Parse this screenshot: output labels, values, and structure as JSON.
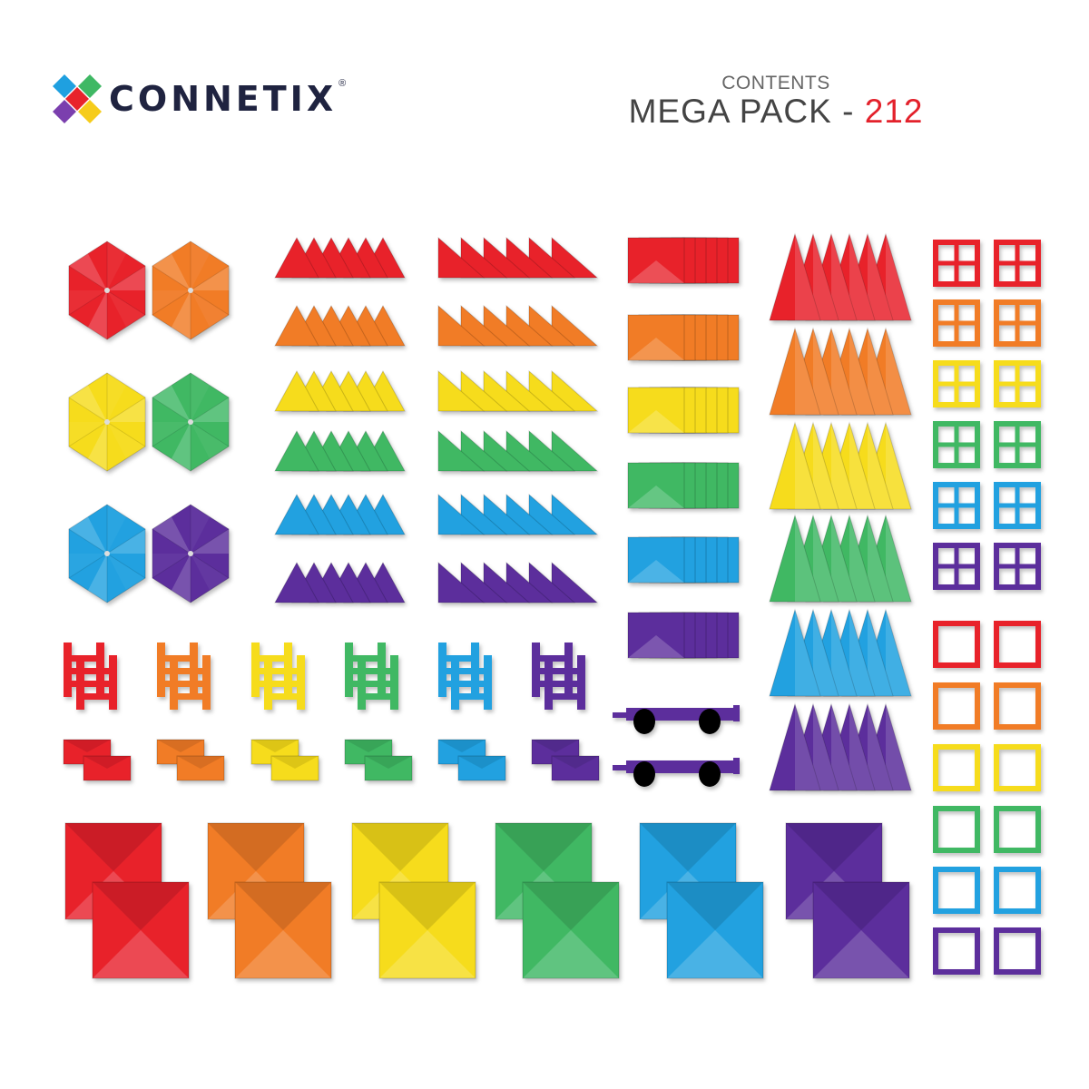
{
  "brand": {
    "name": "CONNETIX",
    "registered": "®"
  },
  "header": {
    "label": "CONTENTS",
    "pack_name": "MEGA PACK",
    "separator": " - ",
    "piece_count": "212"
  },
  "colors": {
    "red": "#e8232c",
    "orange": "#f17b25",
    "yellow": "#f6dc1b",
    "green": "#3fb864",
    "blue": "#20a1e0",
    "purple": "#5b2e9c",
    "wheel": "#000000",
    "title_accent": "#e3212b"
  },
  "piece_groups": [
    {
      "type": "hexagon",
      "per_color": 1
    },
    {
      "type": "small-equilateral-triangle",
      "per_color": 6
    },
    {
      "type": "right-triangle",
      "per_color": 6
    },
    {
      "type": "rectangle",
      "per_color": 6
    },
    {
      "type": "tall-isosceles-triangle",
      "per_color": 6
    },
    {
      "type": "window-square",
      "per_color": 2
    },
    {
      "type": "square-frame",
      "per_color": 2
    },
    {
      "type": "ladder",
      "per_color": 2
    },
    {
      "type": "small-rectangle",
      "per_color": 2
    },
    {
      "type": "chassis-with-wheels",
      "count": 2
    },
    {
      "type": "large-square",
      "per_color": 2
    }
  ]
}
